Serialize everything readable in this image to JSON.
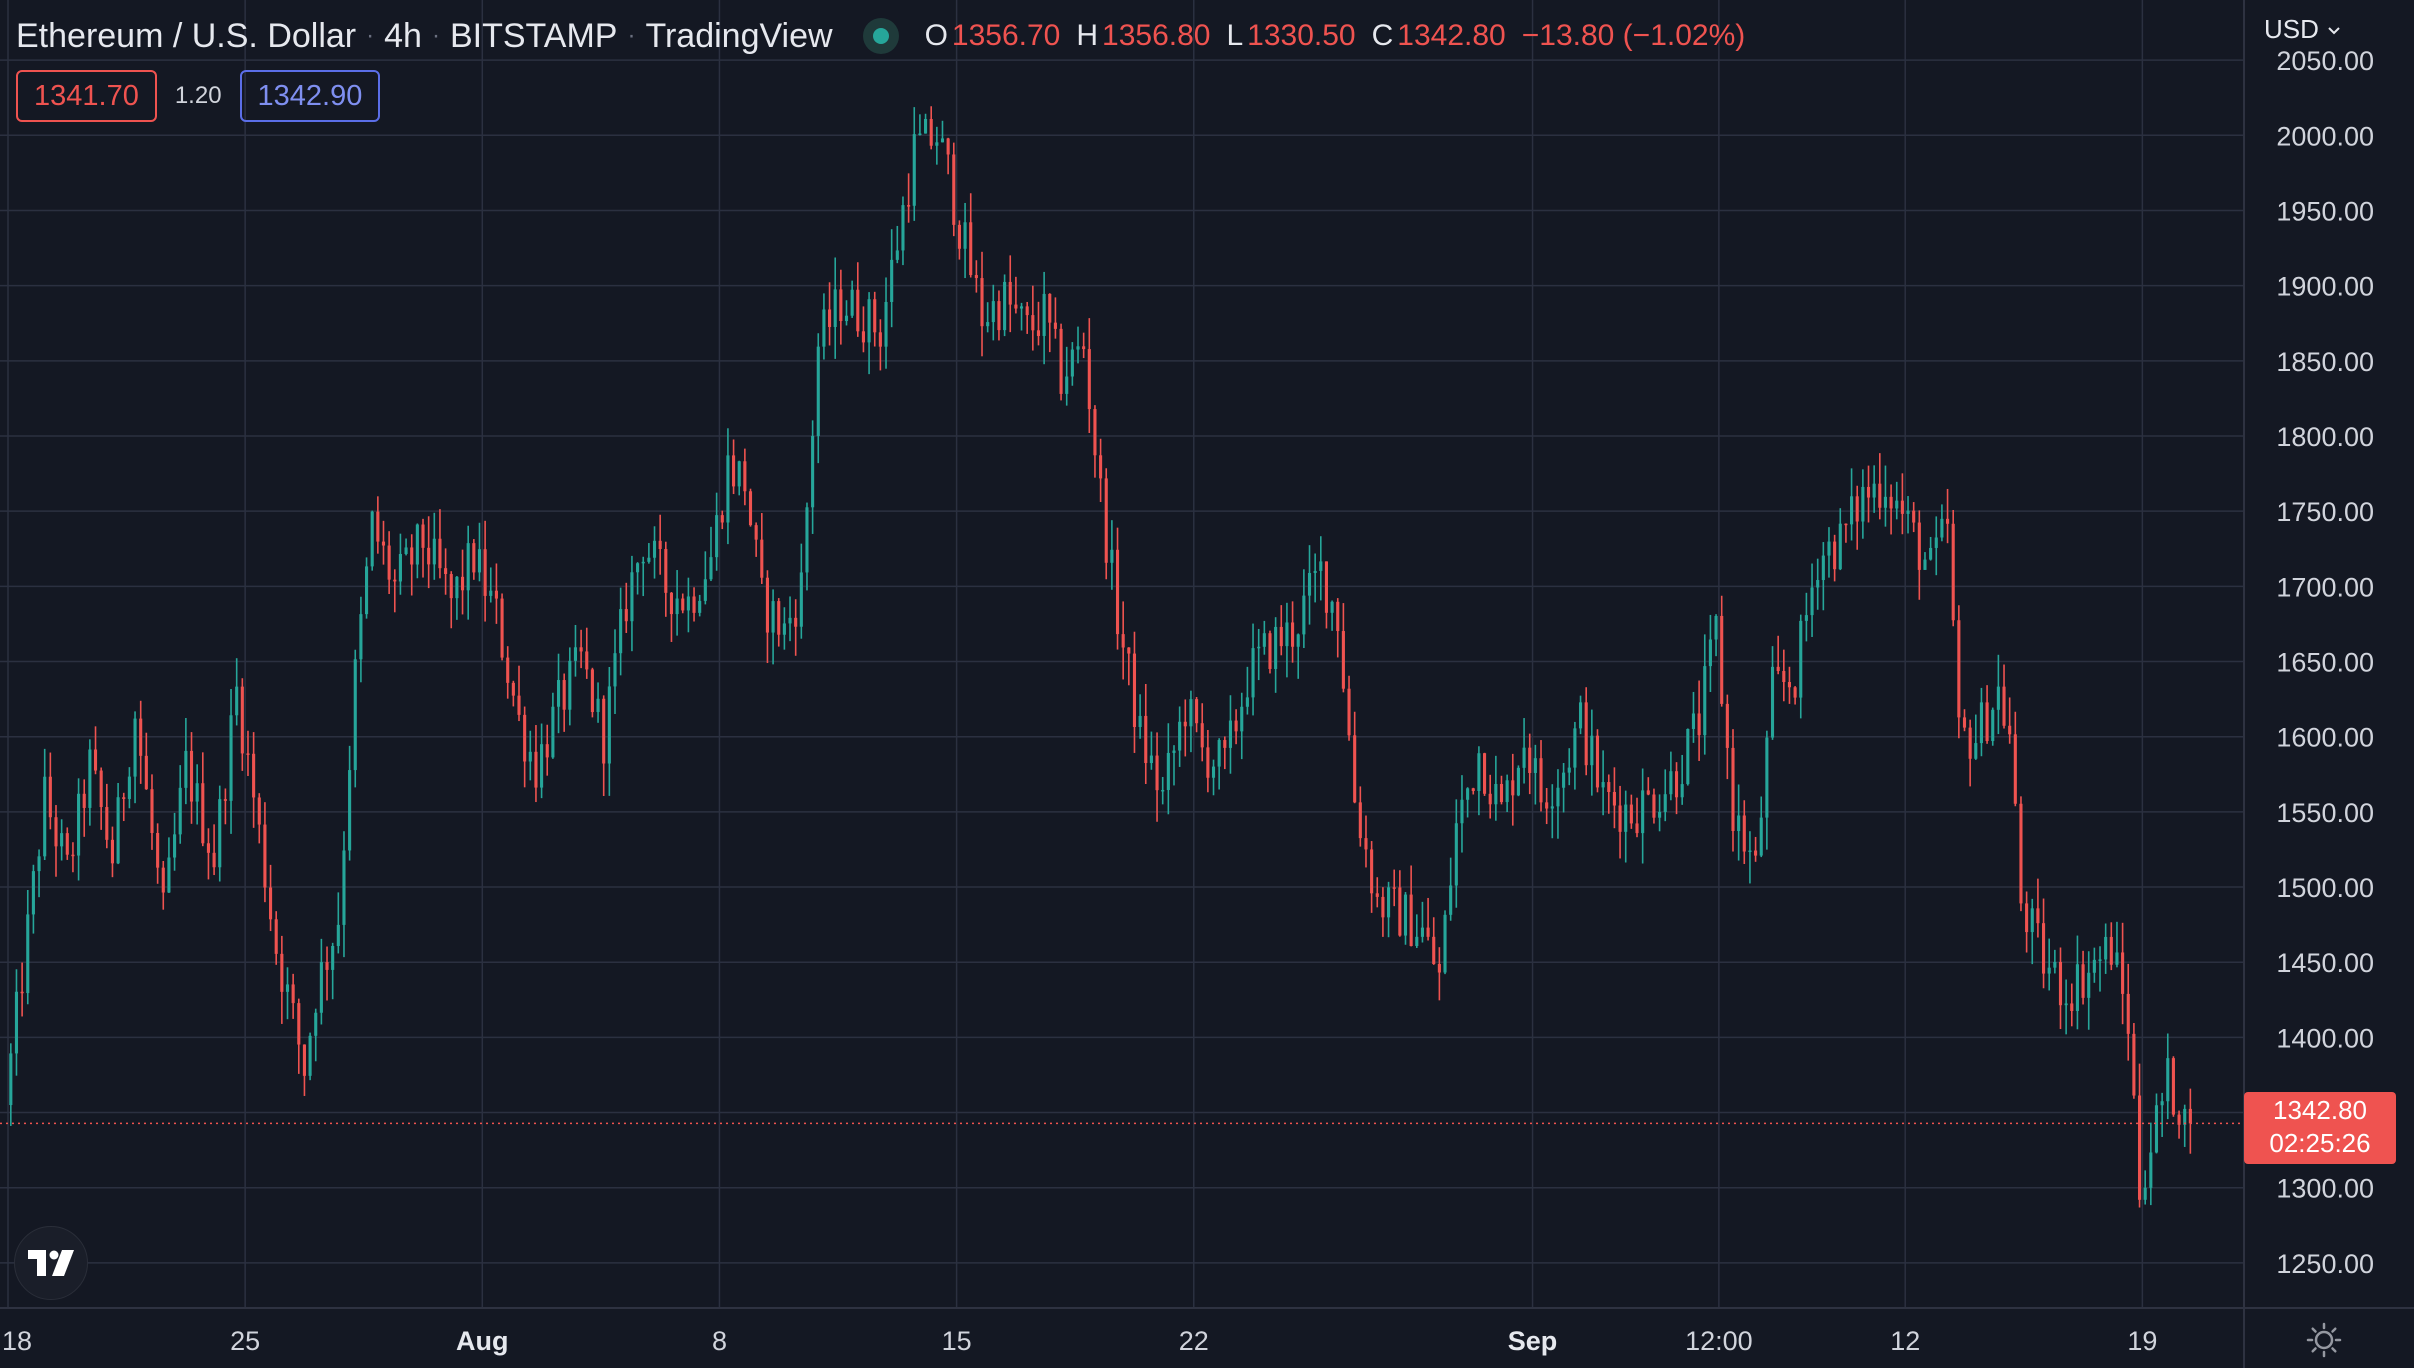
{
  "header": {
    "symbol": "Ethereum / U.S. Dollar",
    "interval": "4h",
    "exchange": "BITSTAMP",
    "platform": "TradingView",
    "separator": "·",
    "ohlc": {
      "o_label": "O",
      "o": "1356.70",
      "h_label": "H",
      "h": "1356.80",
      "l_label": "L",
      "l": "1330.50",
      "c_label": "C",
      "c": "1342.80",
      "change": "−13.80 (−1.02%)"
    },
    "bid": "1341.70",
    "spread": "1.20",
    "ask": "1342.90",
    "currency": "USD"
  },
  "colors": {
    "background": "#141823",
    "grid": "#2b3040",
    "up": "#26a69a",
    "down": "#ef5350",
    "text": "#d1d4dc"
  },
  "price_tag": {
    "price": "1342.80",
    "countdown": "02:25:26"
  },
  "icons": {
    "logo": "tradingview-logo-icon",
    "settings": "settings-sun-icon",
    "currency_menu": "chevron-down-icon",
    "status": "market-open-dot-icon"
  },
  "chart_data": {
    "type": "candlestick",
    "title": "Ethereum / U.S. Dollar",
    "interval": "4h",
    "y_axis_side": "right",
    "ylim": [
      1220,
      2090
    ],
    "y_ticks": [
      1250,
      1300,
      1350,
      1400,
      1450,
      1500,
      1550,
      1600,
      1650,
      1700,
      1750,
      1800,
      1850,
      1900,
      1950,
      2000,
      2050
    ],
    "y_tick_labels": [
      "1250.00",
      "1300.00",
      "1350.00",
      "1400.00",
      "1450.00",
      "1500.00",
      "1550.00",
      "1600.00",
      "1650.00",
      "1700.00",
      "1750.00",
      "1800.00",
      "1850.00",
      "1900.00",
      "1950.00",
      "2000.00",
      "2050.00"
    ],
    "x_range": [
      "2022-07-18T00:00",
      "2022-09-22T00:00"
    ],
    "x_ticks": [
      {
        "t": "2022-07-18T00:00",
        "label": "18",
        "bold": false
      },
      {
        "t": "2022-07-25T00:00",
        "label": "25",
        "bold": false
      },
      {
        "t": "2022-08-01T00:00",
        "label": "Aug",
        "bold": true
      },
      {
        "t": "2022-08-08T00:00",
        "label": "8",
        "bold": false
      },
      {
        "t": "2022-08-15T00:00",
        "label": "15",
        "bold": false
      },
      {
        "t": "2022-08-22T00:00",
        "label": "22",
        "bold": false
      },
      {
        "t": "2022-09-01T00:00",
        "label": "Sep",
        "bold": true
      },
      {
        "t": "2022-09-06T12:00",
        "label": "12:00",
        "bold": false
      },
      {
        "t": "2022-09-12T00:00",
        "label": "12",
        "bold": false
      },
      {
        "t": "2022-09-19T00:00",
        "label": "19",
        "bold": false
      }
    ],
    "current_price": 1342.8,
    "grid": true,
    "price_path": [
      {
        "t": "2022-07-18T00:00",
        "p": 1355
      },
      {
        "t": "2022-07-18T16:00",
        "p": 1470
      },
      {
        "t": "2022-07-19T04:00",
        "p": 1560
      },
      {
        "t": "2022-07-19T20:00",
        "p": 1510
      },
      {
        "t": "2022-07-20T12:00",
        "p": 1580
      },
      {
        "t": "2022-07-21T04:00",
        "p": 1520
      },
      {
        "t": "2022-07-21T20:00",
        "p": 1615
      },
      {
        "t": "2022-07-22T16:00",
        "p": 1480
      },
      {
        "t": "2022-07-23T08:00",
        "p": 1580
      },
      {
        "t": "2022-07-24T04:00",
        "p": 1520
      },
      {
        "t": "2022-07-24T20:00",
        "p": 1630
      },
      {
        "t": "2022-07-25T08:00",
        "p": 1560
      },
      {
        "t": "2022-07-26T00:00",
        "p": 1460
      },
      {
        "t": "2022-07-26T20:00",
        "p": 1380
      },
      {
        "t": "2022-07-27T04:00",
        "p": 1430
      },
      {
        "t": "2022-07-27T20:00",
        "p": 1480
      },
      {
        "t": "2022-07-28T08:00",
        "p": 1640
      },
      {
        "t": "2022-07-28T20:00",
        "p": 1740
      },
      {
        "t": "2022-07-29T12:00",
        "p": 1700
      },
      {
        "t": "2022-07-30T08:00",
        "p": 1730
      },
      {
        "t": "2022-07-31T04:00",
        "p": 1690
      },
      {
        "t": "2022-07-31T20:00",
        "p": 1720
      },
      {
        "t": "2022-08-01T12:00",
        "p": 1680
      },
      {
        "t": "2022-08-02T04:00",
        "p": 1610
      },
      {
        "t": "2022-08-02T16:00",
        "p": 1580
      },
      {
        "t": "2022-08-03T08:00",
        "p": 1620
      },
      {
        "t": "2022-08-04T00:00",
        "p": 1650
      },
      {
        "t": "2022-08-04T16:00",
        "p": 1600
      },
      {
        "t": "2022-08-05T08:00",
        "p": 1690
      },
      {
        "t": "2022-08-05T20:00",
        "p": 1730
      },
      {
        "t": "2022-08-06T12:00",
        "p": 1700
      },
      {
        "t": "2022-08-07T04:00",
        "p": 1690
      },
      {
        "t": "2022-08-07T20:00",
        "p": 1720
      },
      {
        "t": "2022-08-08T08:00",
        "p": 1780
      },
      {
        "t": "2022-08-08T20:00",
        "p": 1770
      },
      {
        "t": "2022-08-09T08:00",
        "p": 1690
      },
      {
        "t": "2022-08-10T00:00",
        "p": 1670
      },
      {
        "t": "2022-08-10T12:00",
        "p": 1700
      },
      {
        "t": "2022-08-11T00:00",
        "p": 1860
      },
      {
        "t": "2022-08-11T16:00",
        "p": 1890
      },
      {
        "t": "2022-08-12T08:00",
        "p": 1880
      },
      {
        "t": "2022-08-12T20:00",
        "p": 1870
      },
      {
        "t": "2022-08-13T08:00",
        "p": 1930
      },
      {
        "t": "2022-08-13T20:00",
        "p": 1990
      },
      {
        "t": "2022-08-14T12:00",
        "p": 2000
      },
      {
        "t": "2022-08-14T20:00",
        "p": 1975
      },
      {
        "t": "2022-08-15T04:00",
        "p": 1940
      },
      {
        "t": "2022-08-15T20:00",
        "p": 1880
      },
      {
        "t": "2022-08-16T12:00",
        "p": 1890
      },
      {
        "t": "2022-08-17T04:00",
        "p": 1870
      },
      {
        "t": "2022-08-17T16:00",
        "p": 1880
      },
      {
        "t": "2022-08-18T04:00",
        "p": 1840
      },
      {
        "t": "2022-08-18T20:00",
        "p": 1860
      },
      {
        "t": "2022-08-19T08:00",
        "p": 1760
      },
      {
        "t": "2022-08-19T20:00",
        "p": 1680
      },
      {
        "t": "2022-08-20T12:00",
        "p": 1600
      },
      {
        "t": "2022-08-21T04:00",
        "p": 1560
      },
      {
        "t": "2022-08-21T20:00",
        "p": 1620
      },
      {
        "t": "2022-08-22T08:00",
        "p": 1590
      },
      {
        "t": "2022-08-23T00:00",
        "p": 1580
      },
      {
        "t": "2022-08-23T16:00",
        "p": 1640
      },
      {
        "t": "2022-08-24T08:00",
        "p": 1660
      },
      {
        "t": "2022-08-25T00:00",
        "p": 1670
      },
      {
        "t": "2022-08-25T20:00",
        "p": 1710
      },
      {
        "t": "2022-08-26T08:00",
        "p": 1680
      },
      {
        "t": "2022-08-26T20:00",
        "p": 1560
      },
      {
        "t": "2022-08-27T12:00",
        "p": 1490
      },
      {
        "t": "2022-08-28T08:00",
        "p": 1480
      },
      {
        "t": "2022-08-28T20:00",
        "p": 1470
      },
      {
        "t": "2022-08-29T08:00",
        "p": 1440
      },
      {
        "t": "2022-08-29T20:00",
        "p": 1540
      },
      {
        "t": "2022-08-30T12:00",
        "p": 1590
      },
      {
        "t": "2022-08-31T04:00",
        "p": 1550
      },
      {
        "t": "2022-08-31T20:00",
        "p": 1600
      },
      {
        "t": "2022-09-01T08:00",
        "p": 1560
      },
      {
        "t": "2022-09-02T00:00",
        "p": 1580
      },
      {
        "t": "2022-09-02T12:00",
        "p": 1610
      },
      {
        "t": "2022-09-03T04:00",
        "p": 1560
      },
      {
        "t": "2022-09-04T00:00",
        "p": 1550
      },
      {
        "t": "2022-09-04T16:00",
        "p": 1560
      },
      {
        "t": "2022-09-05T08:00",
        "p": 1575
      },
      {
        "t": "2022-09-06T00:00",
        "p": 1610
      },
      {
        "t": "2022-09-06T12:00",
        "p": 1670
      },
      {
        "t": "2022-09-07T00:00",
        "p": 1550
      },
      {
        "t": "2022-09-07T16:00",
        "p": 1510
      },
      {
        "t": "2022-09-08T04:00",
        "p": 1630
      },
      {
        "t": "2022-09-08T20:00",
        "p": 1640
      },
      {
        "t": "2022-09-09T12:00",
        "p": 1720
      },
      {
        "t": "2022-09-10T04:00",
        "p": 1730
      },
      {
        "t": "2022-09-10T20:00",
        "p": 1760
      },
      {
        "t": "2022-09-11T12:00",
        "p": 1770
      },
      {
        "t": "2022-09-12T04:00",
        "p": 1740
      },
      {
        "t": "2022-09-12T20:00",
        "p": 1710
      },
      {
        "t": "2022-09-13T08:00",
        "p": 1740
      },
      {
        "t": "2022-09-13T16:00",
        "p": 1600
      },
      {
        "t": "2022-09-14T04:00",
        "p": 1600
      },
      {
        "t": "2022-09-14T20:00",
        "p": 1630
      },
      {
        "t": "2022-09-15T04:00",
        "p": 1600
      },
      {
        "t": "2022-09-15T12:00",
        "p": 1490
      },
      {
        "t": "2022-09-16T04:00",
        "p": 1450
      },
      {
        "t": "2022-09-16T20:00",
        "p": 1430
      },
      {
        "t": "2022-09-17T12:00",
        "p": 1445
      },
      {
        "t": "2022-09-18T04:00",
        "p": 1460
      },
      {
        "t": "2022-09-18T16:00",
        "p": 1410
      },
      {
        "t": "2022-09-19T00:00",
        "p": 1300
      },
      {
        "t": "2022-09-19T08:00",
        "p": 1330
      },
      {
        "t": "2022-09-19T20:00",
        "p": 1370
      },
      {
        "t": "2022-09-20T04:00",
        "p": 1357
      },
      {
        "t": "2022-09-20T08:00",
        "p": 1342.8
      }
    ]
  }
}
